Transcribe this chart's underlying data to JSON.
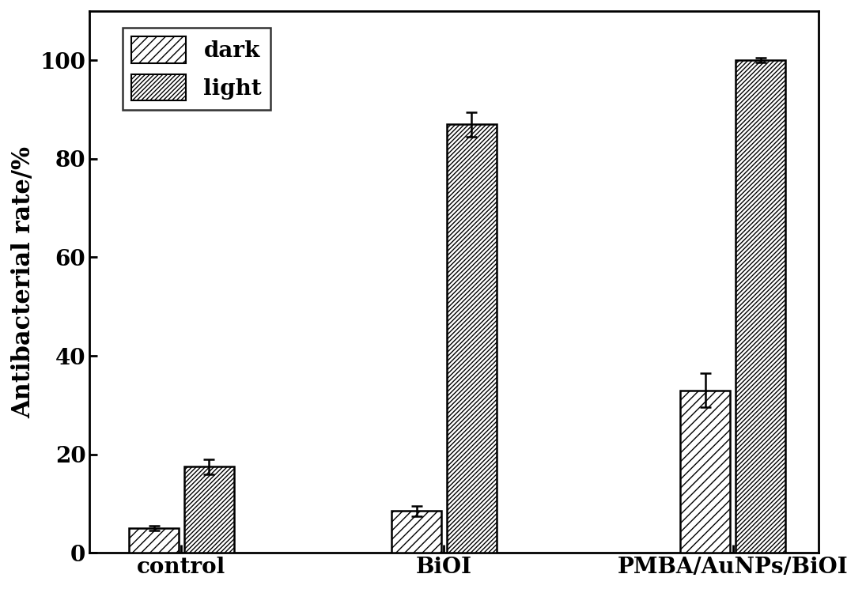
{
  "categories": [
    "control",
    "BiOI",
    "PMBA/AuNPs/BiOI"
  ],
  "dark_values": [
    5.0,
    8.5,
    33.0
  ],
  "light_values": [
    17.5,
    87.0,
    100.0
  ],
  "dark_errors": [
    0.5,
    1.0,
    3.5
  ],
  "light_errors": [
    1.5,
    2.5,
    0.5
  ],
  "ylabel": "Antibacterial rate/%",
  "ylim": [
    0,
    110
  ],
  "yticks": [
    0,
    20,
    40,
    60,
    80,
    100
  ],
  "bar_width": 0.38,
  "bar_facecolor": "white",
  "bar_edgecolor": "black",
  "error_color": "black",
  "legend_labels": [
    "dark",
    "light"
  ],
  "label_fontsize": 22,
  "tick_fontsize": 20,
  "legend_fontsize": 20,
  "background_color": "white",
  "figure_width": 10.95,
  "figure_height": 7.45
}
